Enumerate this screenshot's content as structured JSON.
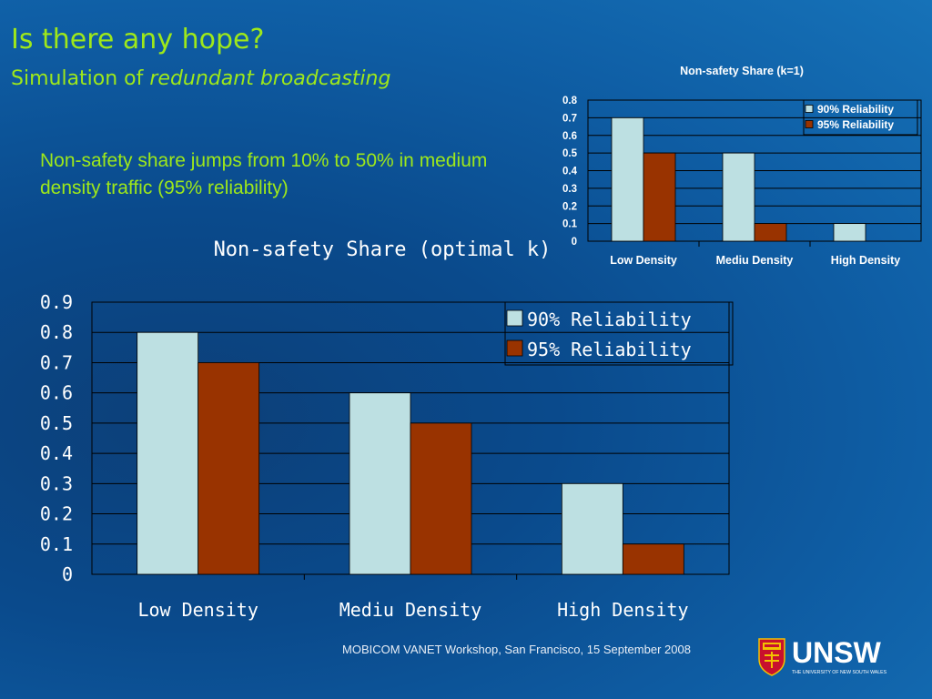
{
  "slide": {
    "title": "Is there any hope?",
    "subtitle_prefix": "Simulation of ",
    "subtitle_emphasis": "redundant broadcasting",
    "note": "Non-safety share jumps from 10% to 50% in medium density traffic (95% reliability)",
    "footer": "MOBICOM VANET Workshop, San Francisco, 15 September 2008",
    "logo_text": "UNSW",
    "logo_subtext": "THE UNIVERSITY OF NEW SOUTH WALES"
  },
  "colors": {
    "series_90": "#bde0e2",
    "series_95": "#993300",
    "title_green": "#9ee81a",
    "gridline": "#000000"
  },
  "chart_data": [
    {
      "type": "bar",
      "title": "Non-safety Share (k=1)",
      "categories": [
        "Low Density",
        "Mediu Density",
        "High Density"
      ],
      "series": [
        {
          "name": "90% Reliability",
          "values": [
            0.7,
            0.5,
            0.1
          ]
        },
        {
          "name": "95% Reliability",
          "values": [
            0.5,
            0.1,
            0
          ]
        }
      ],
      "ylim": [
        0,
        0.8
      ],
      "yticks": [
        "0",
        "0.1",
        "0.2",
        "0.3",
        "0.4",
        "0.5",
        "0.6",
        "0.7",
        "0.8"
      ],
      "grid": true,
      "legend": "top-right"
    },
    {
      "type": "bar",
      "title": "Non-safety Share (optimal k)",
      "categories": [
        "Low Density",
        "Mediu Density",
        "High Density"
      ],
      "series": [
        {
          "name": "90% Reliability",
          "values": [
            0.8,
            0.6,
            0.3
          ]
        },
        {
          "name": "95% Reliability",
          "values": [
            0.7,
            0.5,
            0.1
          ]
        }
      ],
      "ylim": [
        0,
        0.9
      ],
      "yticks": [
        "0",
        "0.1",
        "0.2",
        "0.3",
        "0.4",
        "0.5",
        "0.6",
        "0.7",
        "0.8",
        "0.9"
      ],
      "grid": true,
      "legend": "top-right"
    }
  ]
}
